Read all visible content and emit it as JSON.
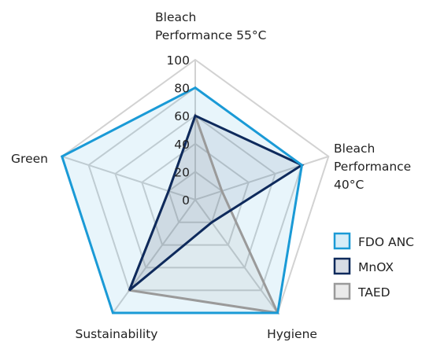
{
  "chart_data": {
    "type": "radar",
    "axes": [
      [
        "Bleach",
        "Performance 55°C"
      ],
      [
        "Bleach",
        "Performance",
        "40°C"
      ],
      [
        "Hygiene"
      ],
      [
        "Sustainability"
      ],
      [
        "Green"
      ]
    ],
    "rlim": [
      0,
      100
    ],
    "ticks": [
      "0",
      "20",
      "40",
      "60",
      "80",
      "100"
    ],
    "tick_values": [
      0,
      20,
      40,
      60,
      80,
      100
    ],
    "grid": true,
    "legend_position": "right",
    "series": [
      {
        "name": "FDO ANC",
        "values": [
          80,
          80,
          100,
          100,
          100
        ],
        "stroke": "#1a9ad6",
        "fill": "#1a9ad6",
        "fill_opacity": 0.1
      },
      {
        "name": "MnOX",
        "values": [
          60,
          80,
          20,
          80,
          20
        ],
        "stroke": "#0e2a5c",
        "fill": "#0e2a5c",
        "fill_opacity": 0.08
      },
      {
        "name": "TAED",
        "values": [
          60,
          20,
          100,
          80,
          20
        ],
        "stroke": "#9a9a9a",
        "fill": "#8a8a8a",
        "fill_opacity": 0.1
      }
    ]
  }
}
